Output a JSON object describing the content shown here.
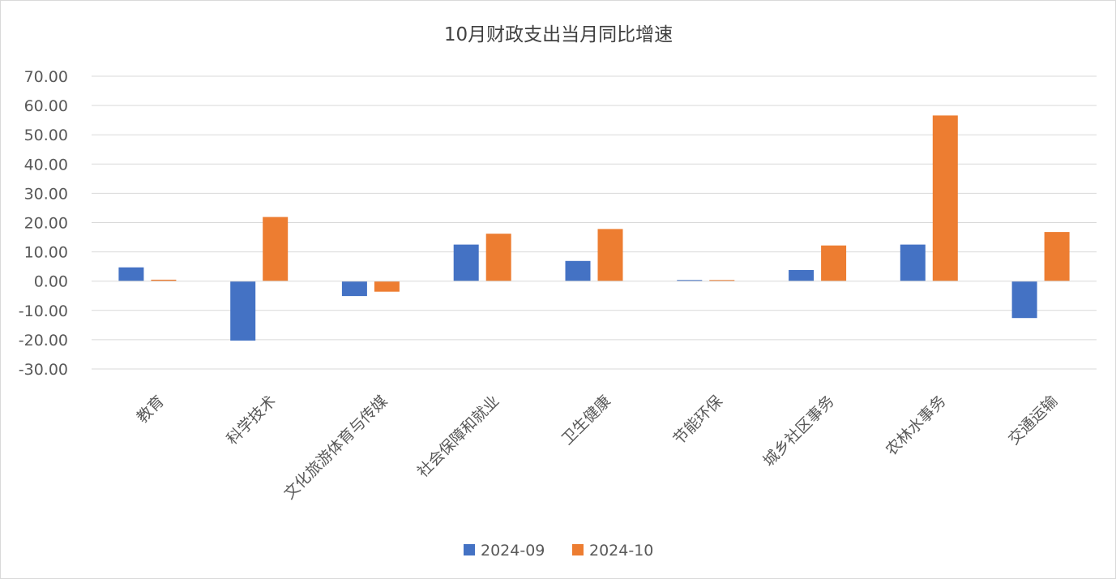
{
  "chart_data": {
    "type": "bar",
    "title": "10月财政支出当月同比增速",
    "categories": [
      "教育",
      "科学技术",
      "文化旅游体育与传媒",
      "社会保障和就业",
      "卫生健康",
      "节能环保",
      "城乡社区事务",
      "农林水事务",
      "交通运输"
    ],
    "series": [
      {
        "name": "2024-09",
        "color": "#4472C4",
        "values": [
          4.7,
          -20.3,
          -5.1,
          12.5,
          6.9,
          0.4,
          3.8,
          12.5,
          -12.6
        ]
      },
      {
        "name": "2024-10",
        "color": "#ED7D31",
        "values": [
          0.5,
          21.9,
          -3.6,
          16.2,
          17.8,
          0.4,
          12.2,
          56.6,
          16.8
        ]
      }
    ],
    "ylim": [
      -30,
      70
    ],
    "yticks": [
      70,
      60,
      50,
      40,
      30,
      20,
      10,
      0,
      -10,
      -20,
      -30
    ],
    "ytick_labels": [
      "70.00",
      "60.00",
      "50.00",
      "40.00",
      "30.00",
      "20.00",
      "10.00",
      "0.00",
      "-10.00",
      "-20.00",
      "-30.00"
    ],
    "xlabel": "",
    "ylabel": "",
    "grid": true,
    "legend": "bottom"
  }
}
